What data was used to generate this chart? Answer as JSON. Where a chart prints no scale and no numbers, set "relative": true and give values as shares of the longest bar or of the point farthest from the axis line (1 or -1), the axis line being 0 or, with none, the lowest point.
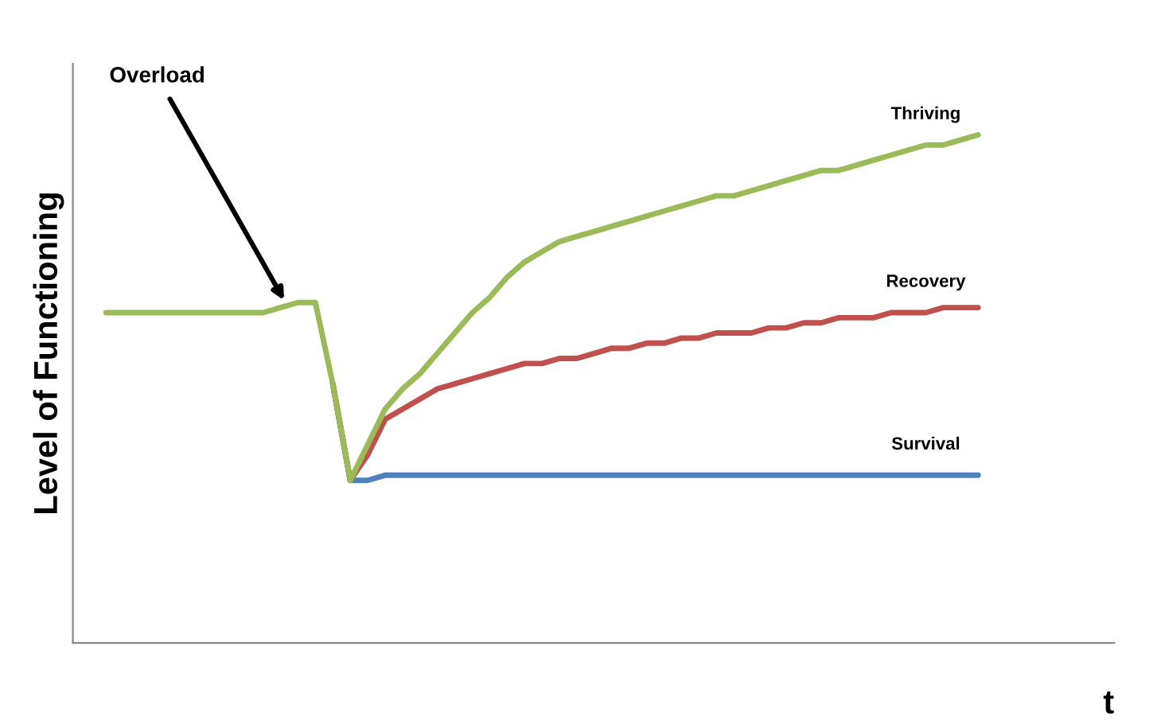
{
  "chart_data": {
    "type": "line",
    "relative": true,
    "ylabel": "Level of Functioning",
    "xlabel": "t",
    "legend": false,
    "marker": "none",
    "line_style": "solid",
    "annotations": [
      "Overload"
    ],
    "categories": [
      null,
      null,
      null,
      null,
      null,
      null,
      null,
      null,
      null,
      null,
      null,
      null,
      null,
      null,
      null,
      null,
      null,
      null,
      null,
      null,
      null,
      null,
      null,
      null,
      null,
      null,
      null,
      null,
      null,
      null,
      null,
      null,
      null,
      null,
      null,
      null,
      null,
      null,
      null,
      null,
      null,
      null,
      null,
      null,
      null,
      null,
      null,
      null,
      null,
      null,
      null
    ],
    "series": [
      {
        "name": "Survival",
        "color": "#4f81bd",
        "values": [
          null,
          null,
          null,
          null,
          null,
          null,
          null,
          null,
          null,
          null,
          null,
          null,
          null,
          0.51,
          0.32,
          0.32,
          0.33,
          0.33,
          0.33,
          0.33,
          0.33,
          0.33,
          0.33,
          0.33,
          0.33,
          0.33,
          0.33,
          0.33,
          0.33,
          0.33,
          0.33,
          0.33,
          0.33,
          0.33,
          0.33,
          0.33,
          0.33,
          0.33,
          0.33,
          0.33,
          0.33,
          0.33,
          0.33,
          0.33,
          0.33,
          0.33,
          0.33,
          0.33,
          0.33,
          0.33,
          0.33
        ]
      },
      {
        "name": "Recovery",
        "color": "#c0504d",
        "values": [
          null,
          null,
          null,
          null,
          null,
          null,
          null,
          null,
          null,
          null,
          null,
          null,
          null,
          0.51,
          0.32,
          0.37,
          0.44,
          0.46,
          0.48,
          0.5,
          0.51,
          0.52,
          0.53,
          0.54,
          0.55,
          0.55,
          0.56,
          0.56,
          0.57,
          0.58,
          0.58,
          0.59,
          0.59,
          0.6,
          0.6,
          0.61,
          0.61,
          0.61,
          0.62,
          0.62,
          0.63,
          0.63,
          0.64,
          0.64,
          0.64,
          0.65,
          0.65,
          0.65,
          0.66,
          0.66,
          0.66
        ]
      },
      {
        "name": "Thriving",
        "color": "#9bbb59",
        "values": [
          0.65,
          0.65,
          0.65,
          0.65,
          0.65,
          0.65,
          0.65,
          0.65,
          0.65,
          0.65,
          0.66,
          0.67,
          0.67,
          0.51,
          0.32,
          0.39,
          0.46,
          0.5,
          0.53,
          0.57,
          0.61,
          0.65,
          0.68,
          0.72,
          0.75,
          0.77,
          0.79,
          0.8,
          0.81,
          0.82,
          0.83,
          0.84,
          0.85,
          0.86,
          0.87,
          0.88,
          0.88,
          0.89,
          0.9,
          0.91,
          0.92,
          0.93,
          0.93,
          0.94,
          0.95,
          0.96,
          0.97,
          0.98,
          0.98,
          0.99,
          1.0
        ]
      }
    ]
  }
}
